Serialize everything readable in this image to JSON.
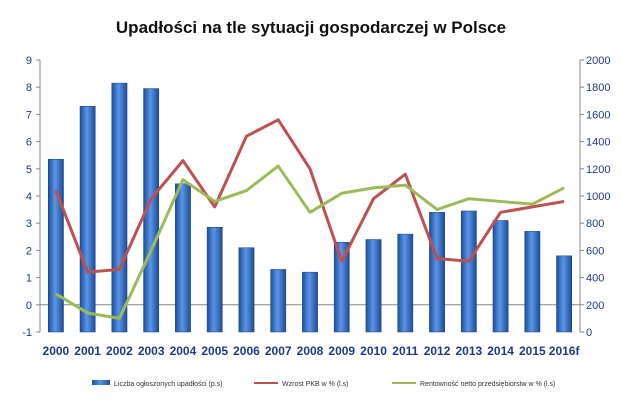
{
  "chart_data": {
    "type": "bar",
    "title": "Upadłości na tle sytuacji gospodarczej w Polsce",
    "categories": [
      "2000",
      "2001",
      "2002",
      "2003",
      "2004",
      "2005",
      "2006",
      "2007",
      "2008",
      "2009",
      "2010",
      "2011",
      "2012",
      "2013",
      "2014",
      "2015",
      "2016f"
    ],
    "left_axis": {
      "ylim": [
        -1,
        9
      ],
      "ticks": [
        -1,
        0,
        1,
        2,
        3,
        4,
        5,
        6,
        7,
        8,
        9
      ]
    },
    "right_axis": {
      "ylim": [
        0,
        2000
      ],
      "ticks": [
        0,
        200,
        400,
        600,
        800,
        1000,
        1200,
        1400,
        1600,
        1800,
        2000
      ]
    },
    "series": [
      {
        "name": "Liczba ogłoszonych upadłości (p.s)",
        "type": "bar",
        "axis": "right",
        "color": "#2e6bc9",
        "values": [
          1270,
          1660,
          1830,
          1790,
          1090,
          770,
          620,
          460,
          440,
          660,
          680,
          720,
          880,
          890,
          820,
          740,
          560
        ]
      },
      {
        "name": "Wzrost PKB w % (l.s)",
        "type": "line",
        "axis": "left",
        "color": "#c0504d",
        "values": [
          4.2,
          1.2,
          1.3,
          3.9,
          5.3,
          3.6,
          6.2,
          6.8,
          5.0,
          1.6,
          3.9,
          4.8,
          1.7,
          1.6,
          3.4,
          3.6,
          3.8
        ]
      },
      {
        "name": "Rentowność netto przedsiębiorstw w % (l.s)",
        "type": "line",
        "axis": "left",
        "color": "#9bbb59",
        "values": [
          0.4,
          -0.3,
          -0.5,
          2.0,
          4.6,
          3.8,
          4.2,
          5.1,
          3.4,
          4.1,
          4.3,
          4.4,
          3.5,
          3.9,
          3.8,
          3.7,
          4.3
        ]
      }
    ],
    "grid": false,
    "legend_position": "bottom"
  }
}
